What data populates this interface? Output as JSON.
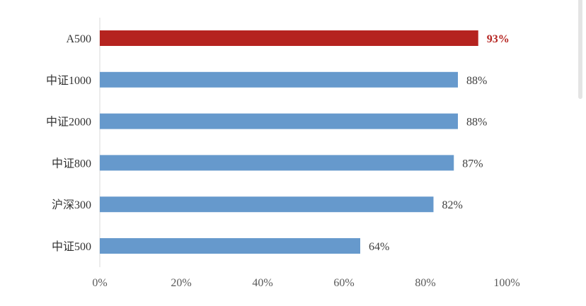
{
  "chart_data": {
    "type": "bar",
    "orientation": "horizontal",
    "title": "",
    "xlabel": "",
    "ylabel": "",
    "categories": [
      "A500",
      "中证1000",
      "中证2000",
      "中证800",
      "沪深300",
      "中证500"
    ],
    "values": [
      93,
      88,
      88,
      87,
      82,
      64
    ],
    "value_labels": [
      "93%",
      "88%",
      "88%",
      "87%",
      "82%",
      "64%"
    ],
    "xlim": [
      0,
      100
    ],
    "x_ticks": [
      "0%",
      "20%",
      "40%",
      "60%",
      "80%",
      "100%"
    ],
    "grid": false,
    "highlight_category": "A500",
    "colors": {
      "bar": "#6699cc",
      "highlight_bar": "#b5231f",
      "highlight_label": "#b5231f",
      "axis": "#d9d9d9"
    }
  }
}
